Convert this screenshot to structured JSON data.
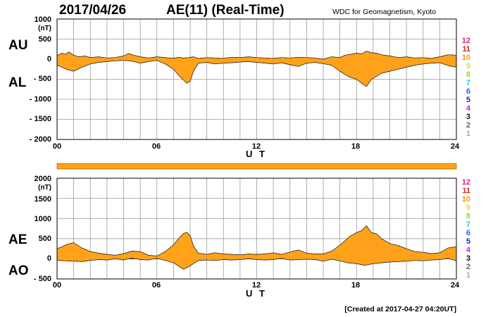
{
  "header": {
    "date": "2017/04/26",
    "title": "AE(11) (Real-Time)",
    "org": "WDC for Geomagnetism, Kyoto"
  },
  "footer": {
    "created": "[Created at 2017-04-27 04:20UT]"
  },
  "station_count_labels": {
    "items": [
      "12",
      "11",
      "10",
      "9",
      "8",
      "7",
      "6",
      "5",
      "4",
      "3",
      "2",
      "1"
    ],
    "colors": [
      "#e0207f",
      "#e02020",
      "#ff9900",
      "#e6e600",
      "#99dd22",
      "#22cccc",
      "#2266ee",
      "#2222aa",
      "#cc22cc",
      "#111111",
      "#666666",
      "#aaaaaa"
    ]
  },
  "coverage_bar": {
    "color": "#ffa21a"
  },
  "chart_data": [
    {
      "type": "area",
      "id": "au-al",
      "upper_label": "AU",
      "lower_label": "AL",
      "unit": "(nT)",
      "xlabel": "U T",
      "xlim": [
        0,
        24
      ],
      "ylim": [
        -2000,
        1000
      ],
      "x_ticks": [
        0,
        6,
        12,
        18,
        24
      ],
      "x_tick_labels": [
        "00",
        "06",
        "12",
        "18",
        "24"
      ],
      "y_ticks": [
        1000,
        500,
        0,
        -500,
        -1000,
        -1500,
        -2000
      ],
      "y_tick_labels": [
        "1000",
        "500",
        "0",
        "- 500",
        "- 1000",
        "- 1500",
        "- 2000"
      ],
      "grid": true,
      "fill_color": "#ffa21a",
      "series": [
        {
          "name": "AU",
          "x": [
            0,
            0.3,
            0.5,
            0.7,
            1,
            1.3,
            1.7,
            2,
            2.5,
            3,
            3.5,
            4,
            4.3,
            4.6,
            5,
            5.5,
            6,
            6.5,
            7,
            7.3,
            7.6,
            7.9,
            8.2,
            8.5,
            9,
            9.5,
            10,
            10.5,
            11,
            11.5,
            12,
            12.5,
            13,
            13.5,
            14,
            14.5,
            15,
            15.5,
            16,
            16.5,
            17,
            17.3,
            17.6,
            18,
            18.3,
            18.6,
            18.9,
            19.2,
            19.5,
            20,
            20.5,
            21,
            21.5,
            22,
            22.5,
            23,
            23.5,
            24
          ],
          "values": [
            90,
            150,
            120,
            180,
            100,
            60,
            80,
            40,
            60,
            30,
            40,
            80,
            140,
            100,
            60,
            30,
            60,
            40,
            20,
            50,
            30,
            40,
            60,
            20,
            40,
            30,
            20,
            50,
            40,
            60,
            40,
            30,
            20,
            40,
            30,
            50,
            40,
            30,
            0,
            60,
            40,
            100,
            120,
            150,
            130,
            200,
            160,
            150,
            110,
            80,
            40,
            60,
            30,
            40,
            20,
            60,
            110,
            100
          ]
        },
        {
          "name": "AL",
          "x": [
            0,
            0.3,
            0.6,
            1,
            1.5,
            2,
            2.5,
            3,
            3.5,
            4,
            4.5,
            5,
            5.5,
            6,
            6.5,
            7,
            7.3,
            7.6,
            7.8,
            8,
            8.2,
            8.5,
            9,
            9.5,
            10,
            10.5,
            11,
            11.5,
            12,
            12.5,
            13,
            13.5,
            14,
            14.5,
            15,
            15.5,
            16,
            16.5,
            17,
            17.3,
            17.6,
            18,
            18.3,
            18.6,
            18.9,
            19.2,
            19.5,
            20,
            20.5,
            21,
            21.5,
            22,
            22.5,
            23,
            23.5,
            24
          ],
          "values": [
            -150,
            -200,
            -260,
            -300,
            -200,
            -120,
            -80,
            -60,
            -40,
            -30,
            -50,
            -100,
            -60,
            -30,
            -120,
            -250,
            -400,
            -520,
            -600,
            -550,
            -300,
            -100,
            -80,
            -120,
            -100,
            -90,
            -70,
            -60,
            -80,
            -100,
            -120,
            -90,
            -140,
            -180,
            -100,
            -80,
            -110,
            -150,
            -300,
            -380,
            -450,
            -500,
            -600,
            -680,
            -500,
            -430,
            -350,
            -300,
            -250,
            -200,
            -150,
            -120,
            -100,
            -90,
            -160,
            -200
          ]
        }
      ]
    },
    {
      "type": "area",
      "id": "ae-ao",
      "upper_label": "AE",
      "lower_label": "AO",
      "unit": "(nT)",
      "xlabel": "U T",
      "xlim": [
        0,
        24
      ],
      "ylim": [
        -500,
        2000
      ],
      "x_ticks": [
        0,
        6,
        12,
        18,
        24
      ],
      "x_tick_labels": [
        "00",
        "06",
        "12",
        "18",
        "24"
      ],
      "y_ticks": [
        2000,
        1500,
        1000,
        500,
        0,
        -500
      ],
      "y_tick_labels": [
        "2000",
        "1500",
        "1000",
        "500",
        "0",
        "- 500"
      ],
      "grid": true,
      "fill_color": "#ffa21a",
      "series": [
        {
          "name": "AE",
          "x": [
            0,
            0.3,
            0.6,
            1,
            1.5,
            2,
            2.5,
            3,
            3.5,
            4,
            4.5,
            5,
            5.5,
            6,
            6.5,
            7,
            7.3,
            7.6,
            7.8,
            8,
            8.2,
            8.5,
            9,
            9.5,
            10,
            10.5,
            11,
            11.5,
            12,
            12.5,
            13,
            13.5,
            14,
            14.5,
            15,
            15.5,
            16,
            16.5,
            17,
            17.3,
            17.6,
            18,
            18.3,
            18.6,
            18.9,
            19.2,
            19.5,
            20,
            20.5,
            21,
            21.5,
            22,
            22.5,
            23,
            23.5,
            24
          ],
          "values": [
            250,
            300,
            360,
            400,
            270,
            180,
            140,
            110,
            90,
            130,
            190,
            180,
            90,
            70,
            180,
            350,
            500,
            630,
            660,
            580,
            320,
            140,
            110,
            150,
            120,
            110,
            100,
            120,
            110,
            120,
            150,
            110,
            170,
            220,
            140,
            120,
            120,
            190,
            340,
            450,
            560,
            650,
            700,
            820,
            650,
            620,
            500,
            380,
            330,
            250,
            180,
            160,
            130,
            150,
            270,
            300
          ]
        },
        {
          "name": "AO",
          "x": [
            0,
            0.5,
            1,
            1.5,
            2,
            2.5,
            3,
            3.5,
            4,
            4.5,
            5,
            5.5,
            6,
            6.5,
            7,
            7.3,
            7.6,
            7.9,
            8.2,
            8.5,
            9,
            9.5,
            10,
            10.5,
            11,
            11.5,
            12,
            12.5,
            13,
            13.5,
            14,
            14.5,
            15,
            15.5,
            16,
            16.5,
            17,
            17.5,
            18,
            18.5,
            19,
            19.5,
            20,
            20.5,
            21,
            21.5,
            22,
            22.5,
            23,
            23.5,
            24
          ],
          "values": [
            -40,
            -50,
            -60,
            -70,
            -40,
            -20,
            -30,
            0,
            -30,
            20,
            -20,
            -30,
            10,
            -40,
            -100,
            -180,
            -260,
            -200,
            -120,
            -40,
            -30,
            -40,
            -20,
            -30,
            -20,
            0,
            -20,
            -30,
            -20,
            10,
            -30,
            -20,
            -10,
            -20,
            -60,
            -10,
            -50,
            -100,
            -120,
            -160,
            -120,
            -100,
            -80,
            -70,
            -60,
            -40,
            -50,
            -30,
            -20,
            10,
            -50
          ]
        }
      ]
    }
  ]
}
